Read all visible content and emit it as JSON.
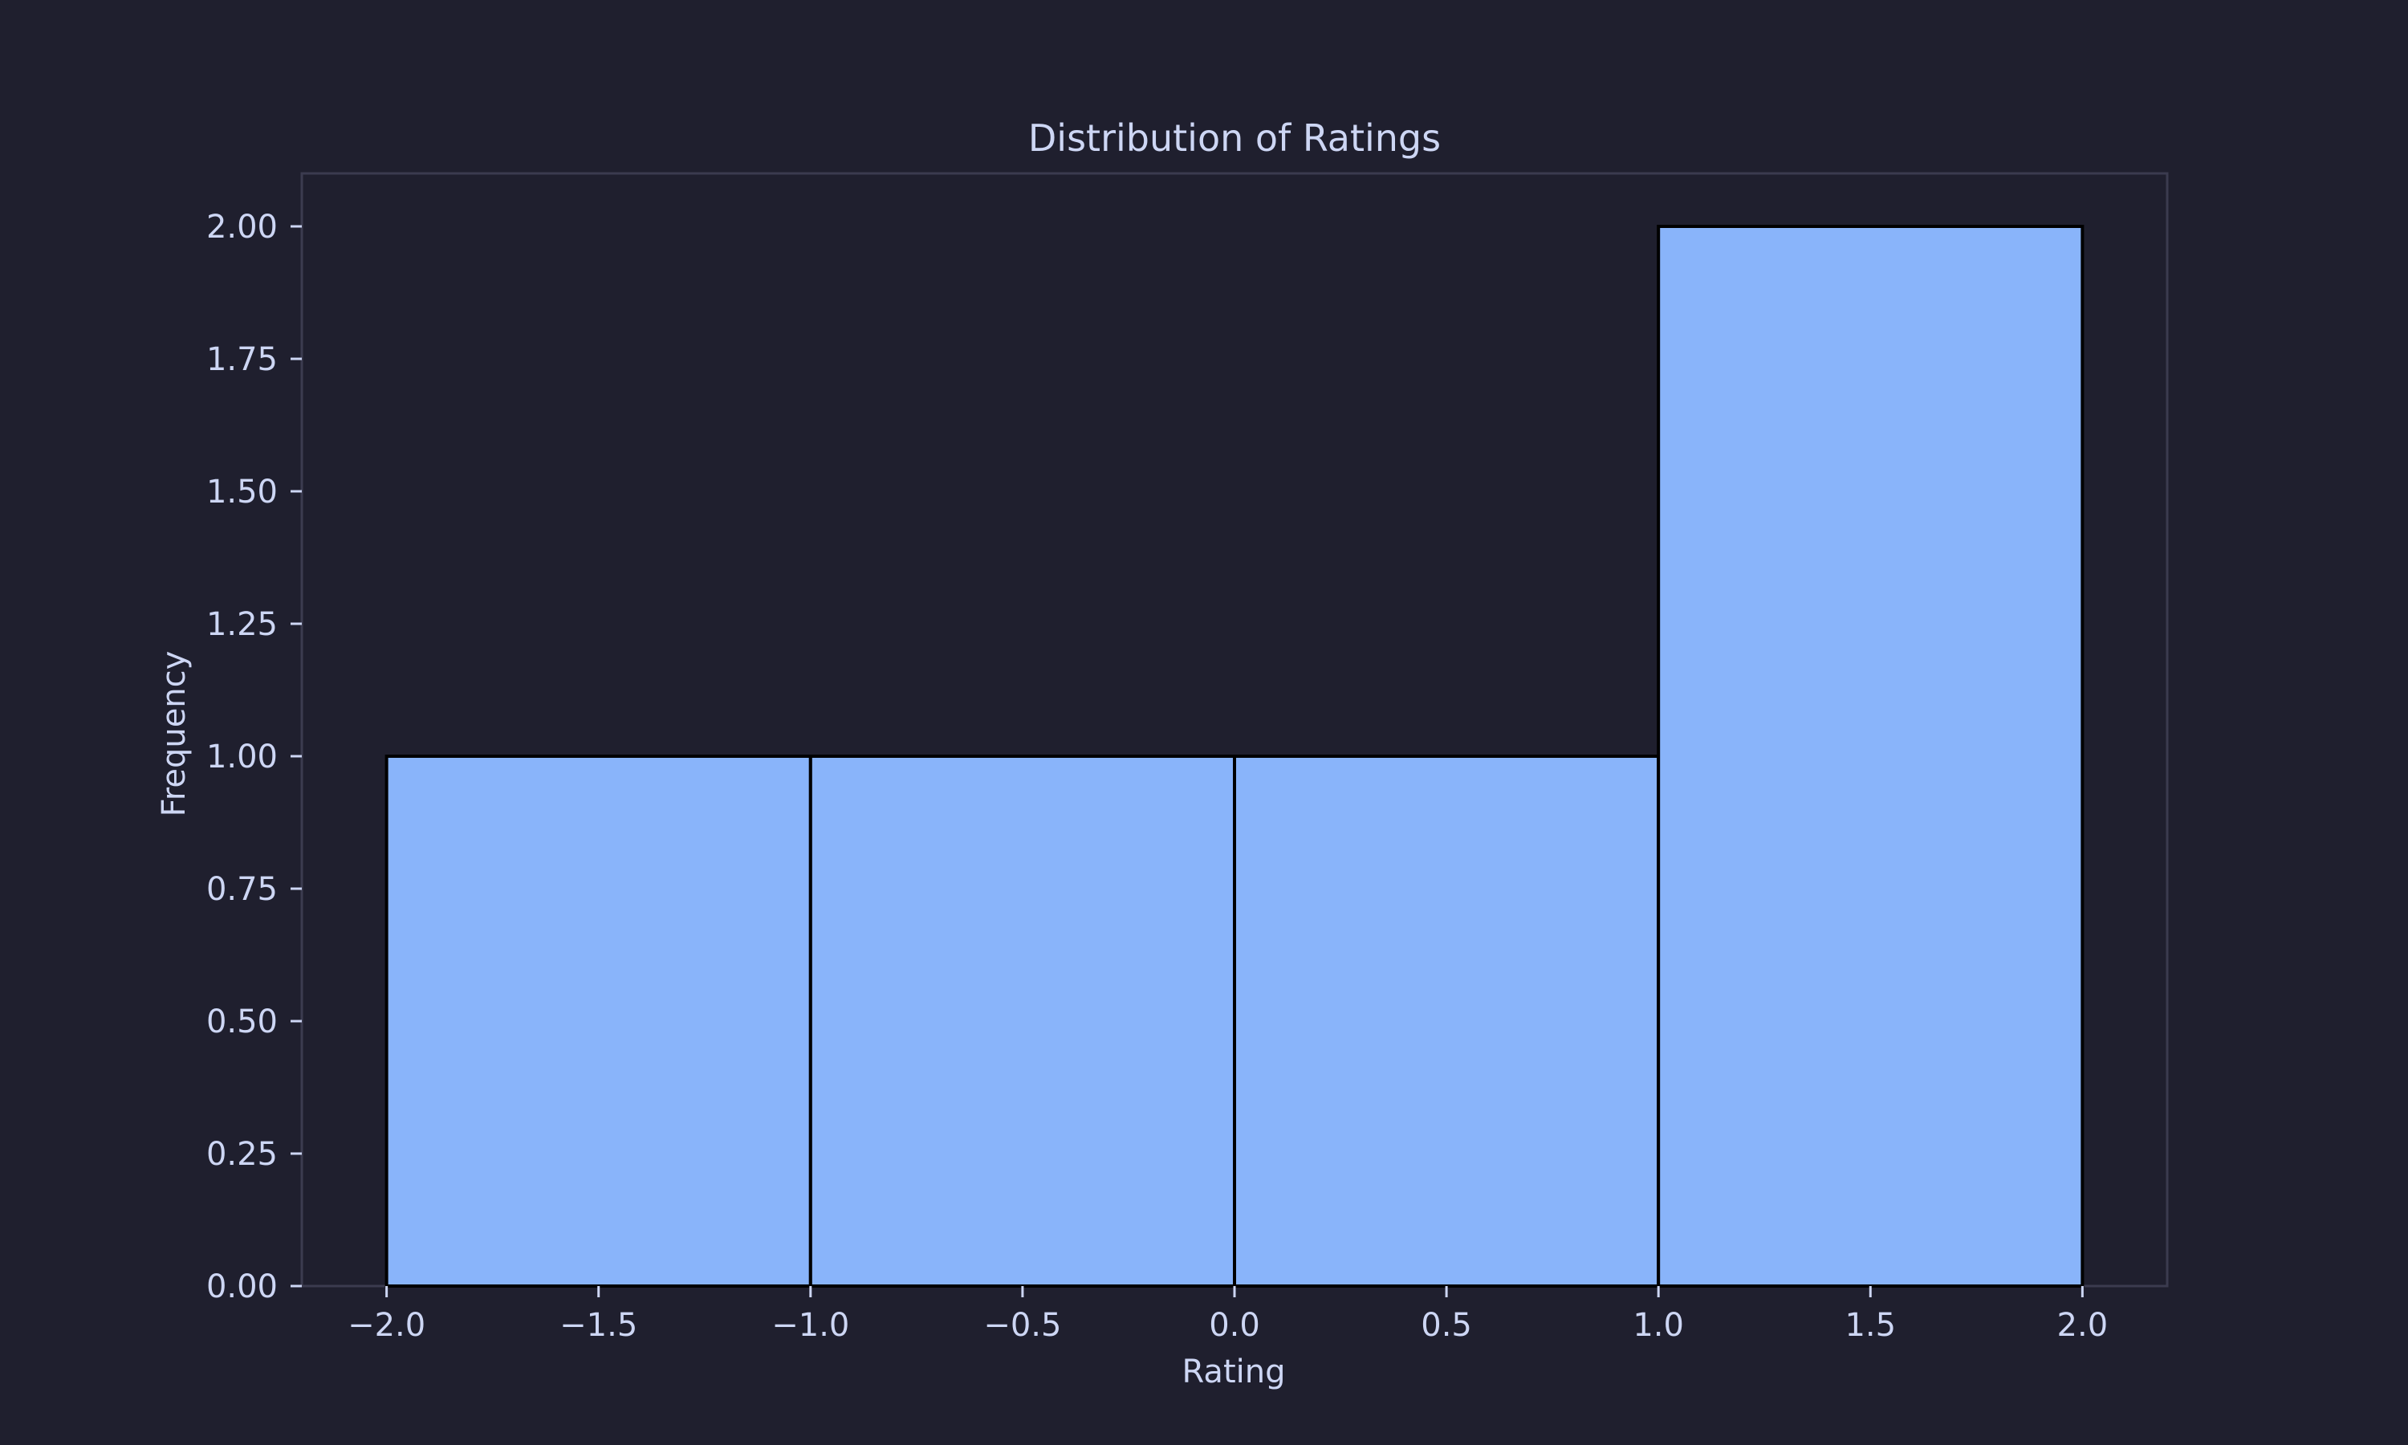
{
  "colors": {
    "background": "#1f1f2e",
    "bar_fill": "#89b4fa",
    "bar_edge": "#000000",
    "text": "#cdd6f4",
    "frame": "#3b3b4f"
  },
  "chart_data": {
    "type": "bar",
    "subtype": "histogram",
    "title": "Distribution of Ratings",
    "xlabel": "Rating",
    "ylabel": "Frequency",
    "xlim": [
      -2.2,
      2.2
    ],
    "ylim": [
      0,
      2.1
    ],
    "bins": [
      {
        "x0": -2.0,
        "x1": -1.0,
        "count": 1
      },
      {
        "x0": -1.0,
        "x1": 0.0,
        "count": 1
      },
      {
        "x0": 0.0,
        "x1": 1.0,
        "count": 1
      },
      {
        "x0": 1.0,
        "x1": 2.0,
        "count": 2
      }
    ],
    "xticks": [
      {
        "value": -2.0,
        "label": "−2.0"
      },
      {
        "value": -1.5,
        "label": "−1.5"
      },
      {
        "value": -1.0,
        "label": "−1.0"
      },
      {
        "value": -0.5,
        "label": "−0.5"
      },
      {
        "value": 0.0,
        "label": "0.0"
      },
      {
        "value": 0.5,
        "label": "0.5"
      },
      {
        "value": 1.0,
        "label": "1.0"
      },
      {
        "value": 1.5,
        "label": "1.5"
      },
      {
        "value": 2.0,
        "label": "2.0"
      }
    ],
    "yticks": [
      {
        "value": 0.0,
        "label": "0.00"
      },
      {
        "value": 0.25,
        "label": "0.25"
      },
      {
        "value": 0.5,
        "label": "0.50"
      },
      {
        "value": 0.75,
        "label": "0.75"
      },
      {
        "value": 1.0,
        "label": "1.00"
      },
      {
        "value": 1.25,
        "label": "1.25"
      },
      {
        "value": 1.5,
        "label": "1.50"
      },
      {
        "value": 1.75,
        "label": "1.75"
      },
      {
        "value": 2.0,
        "label": "2.00"
      }
    ],
    "grid": false,
    "legend": "none"
  }
}
